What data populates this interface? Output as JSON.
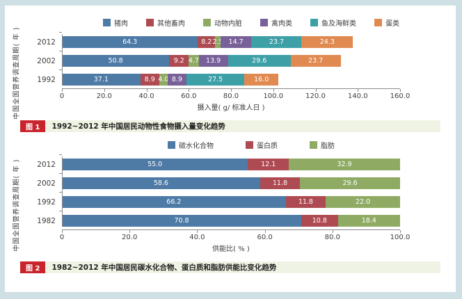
{
  "page": {
    "frame_color": "#cfe0e4",
    "background": "#ffffff",
    "badge_color": "#c9242b",
    "caption_strip_color": "#eff3e3",
    "axis_color": "#8a8a8a"
  },
  "chart_data": [
    {
      "type": "bar",
      "orientation": "horizontal-stacked",
      "title": "",
      "categories": [
        "2012",
        "2002",
        "1992"
      ],
      "series": [
        {
          "name": "猪肉",
          "color": "#4e7aa6",
          "values": [
            64.3,
            50.8,
            37.1
          ]
        },
        {
          "name": "其他畜肉",
          "color": "#ae4a52",
          "values": [
            8.2,
            9.2,
            8.9
          ]
        },
        {
          "name": "动物内脏",
          "color": "#8fab63",
          "values": [
            2.5,
            4.7,
            4.0
          ]
        },
        {
          "name": "禽肉类",
          "color": "#776198",
          "values": [
            14.7,
            13.9,
            8.9
          ]
        },
        {
          "name": "鱼及海鲜类",
          "color": "#3da0a7",
          "values": [
            23.7,
            29.6,
            27.5
          ]
        },
        {
          "name": "蛋类",
          "color": "#e08a51",
          "values": [
            24.3,
            23.7,
            16.0
          ]
        }
      ],
      "x_min": 0,
      "x_max": 160,
      "x_ticks": [
        "0",
        "20.0",
        "40.0",
        "60.0",
        "80.0",
        "100.0",
        "120.0",
        "140.0",
        "160.0"
      ],
      "xlabel": "摄入量( g/ 标准人日 )",
      "ylabel": "中国全国营养调查周期( 年 )",
      "legend_position": "top",
      "grid": false,
      "caption_badge": "图 1",
      "caption_text": "1992~2012 年中国居民动物性食物摄入量变化趋势"
    },
    {
      "type": "bar",
      "orientation": "horizontal-stacked",
      "title": "",
      "categories": [
        "2012",
        "2002",
        "1992",
        "1982"
      ],
      "series": [
        {
          "name": "碳水化合物",
          "color": "#4e7aa6",
          "values": [
            55.0,
            58.6,
            66.2,
            70.8
          ]
        },
        {
          "name": "蛋白质",
          "color": "#ae4a52",
          "values": [
            12.1,
            11.8,
            11.8,
            10.8
          ]
        },
        {
          "name": "脂肪",
          "color": "#8fab63",
          "values": [
            32.9,
            29.6,
            22.0,
            18.4
          ]
        }
      ],
      "x_min": 0,
      "x_max": 100,
      "x_ticks": [
        "0",
        "20.0",
        "40.0",
        "60.0",
        "80.0",
        "100.0"
      ],
      "xlabel": "供能比( % )",
      "ylabel": "中国全国营养调查周期( 年 )",
      "legend_position": "top",
      "grid": false,
      "caption_badge": "图 2",
      "caption_text": "1982~2012 年中国居民碳水化合物、蛋白质和脂肪供能比变化趋势"
    }
  ]
}
